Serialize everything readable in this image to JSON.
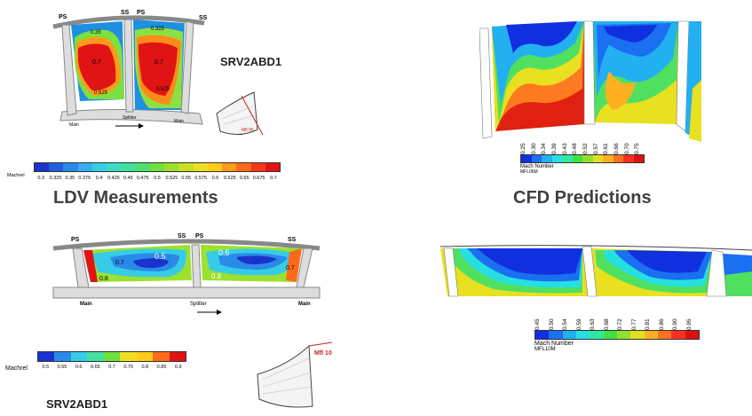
{
  "panels": {
    "ldv_top": {
      "labels": [
        "PS",
        "SS",
        "PS",
        "SS"
      ],
      "contours": [
        "0.35",
        "0.325",
        "0.7",
        "0.7",
        "0.525",
        "0.525"
      ],
      "bottom_labels": [
        "Main",
        "Splitter",
        "Main"
      ],
      "inset_label": "Mfl 06",
      "code": "SRV2ABD1",
      "colorbar_title": "Machrel",
      "ticks": [
        "0.3",
        "0.325",
        "0.35",
        "0.375",
        "0.4",
        "0.425",
        "0.45",
        "0.475",
        "0.5",
        "0.525",
        "0.55",
        "0.575",
        "0.6",
        "0.625",
        "0.65",
        "0.675",
        "0.7"
      ]
    },
    "cfd_top": {
      "ticks": [
        "0.25",
        "0.30",
        "0.34",
        "0.39",
        "0.43",
        "0.48",
        "0.52",
        "0.57",
        "0.61",
        "0.66",
        "0.70",
        "0.75"
      ],
      "colorbar_title": "Mach Number",
      "colorbar_sub": "MFL06M"
    },
    "ldv_bottom": {
      "labels": [
        "PS",
        "SS",
        "PS",
        "SS"
      ],
      "contours": [
        "0.7",
        "0.5",
        "0.8",
        "0.5",
        "0.8",
        "0.7"
      ],
      "bottom_labels": [
        "Main",
        "Splitter",
        "Main"
      ],
      "inset_label": "Mfl 10",
      "code": "SRV2ABD1",
      "colorbar_title": "Machrel",
      "ticks": [
        "0.5",
        "0.55",
        "0.6",
        "0.65",
        "0.7",
        "0.75",
        "0.8",
        "0.85",
        "0.9"
      ]
    },
    "cfd_bottom": {
      "ticks": [
        "0.45",
        "0.50",
        "0.54",
        "0.59",
        "0.63",
        "0.68",
        "0.72",
        "0.77",
        "0.81",
        "0.86",
        "0.90",
        "0.95"
      ],
      "colorbar_title": "Mach Number",
      "colorbar_sub": "MFL10M"
    }
  },
  "headings": {
    "left": "LDV Measurements",
    "right": "CFD Predictions"
  },
  "colors": {
    "ldv_scale": [
      "#1a33cc",
      "#1f5fe0",
      "#2a8ae8",
      "#33aef0",
      "#36cce8",
      "#3ddcc8",
      "#42e0a0",
      "#4de070",
      "#6ee040",
      "#9be030",
      "#c8e020",
      "#eee020",
      "#ffcc1a",
      "#ff9a1a",
      "#ff6a1a",
      "#f53a1a",
      "#e01414"
    ],
    "cfd_scale": [
      "#1030e0",
      "#1a70f0",
      "#22b0f0",
      "#26e0e0",
      "#30e8a0",
      "#40e040",
      "#90e030",
      "#e0e020",
      "#ffb020",
      "#ff7020",
      "#ff3020",
      "#e01010"
    ],
    "ldv_bottom_scale": [
      "#1a33cc",
      "#2a8ae8",
      "#36cce8",
      "#42e0a0",
      "#6ee040",
      "#eee020",
      "#ffcc1a",
      "#ff6a1a",
      "#e01414"
    ]
  }
}
